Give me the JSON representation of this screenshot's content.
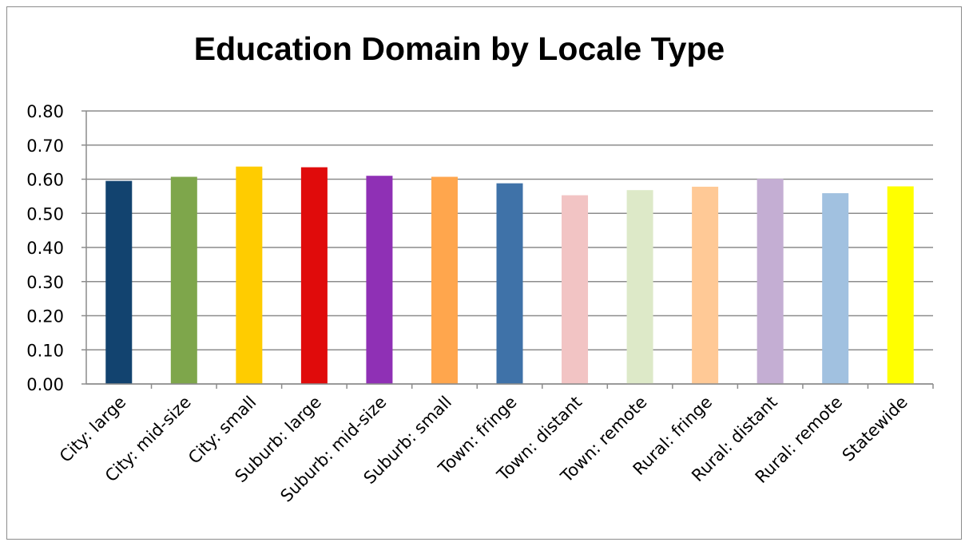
{
  "chart_data": {
    "type": "bar",
    "title": "Education Domain by Locale Type",
    "xlabel": "",
    "ylabel": "",
    "ylim": [
      0,
      0.8
    ],
    "yticks": [
      "0.00",
      "0.10",
      "0.20",
      "0.30",
      "0.40",
      "0.50",
      "0.60",
      "0.70",
      "0.80"
    ],
    "grid": true,
    "categories": [
      "City: large",
      "City: mid-size",
      "City: small",
      "Suburb: large",
      "Suburb: mid-size",
      "Suburb: small",
      "Town: fringe",
      "Town: distant",
      "Town: remote",
      "Rural: fringe",
      "Rural: distant",
      "Rural: remote",
      "Statewide"
    ],
    "values": [
      0.595,
      0.607,
      0.637,
      0.635,
      0.61,
      0.607,
      0.588,
      0.553,
      0.568,
      0.578,
      0.601,
      0.559,
      0.579
    ],
    "colors": [
      "#12436f",
      "#7ea64b",
      "#ffcc00",
      "#e00b0b",
      "#8f30b5",
      "#ffa64d",
      "#3f72a8",
      "#f2c4c4",
      "#dde9c8",
      "#ffc996",
      "#c4aed3",
      "#a1c1e0",
      "#ffff00"
    ]
  }
}
